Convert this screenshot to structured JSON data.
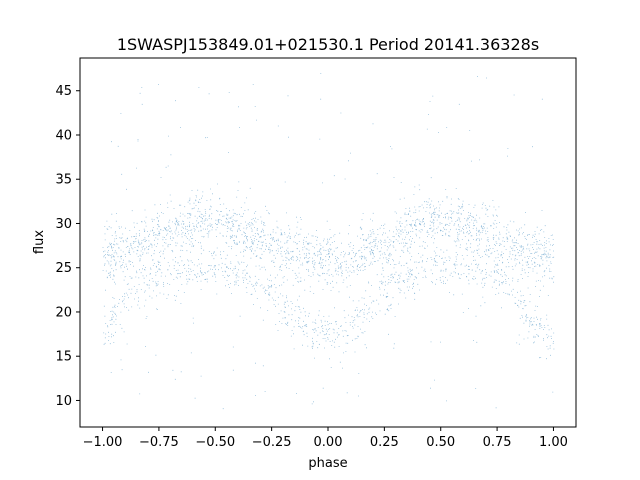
{
  "chart_data": {
    "type": "scatter",
    "title": "1SWASPJ153849.01+021530.1 Period 20141.36328s",
    "xlabel": "phase",
    "ylabel": "flux",
    "xlim": [
      -1.1,
      1.1
    ],
    "ylim": [
      7.0,
      48.7
    ],
    "xticks": [
      -1.0,
      -0.75,
      -0.5,
      -0.25,
      0.0,
      0.25,
      0.5,
      0.75,
      1.0
    ],
    "xtick_labels": [
      "−1.00",
      "−0.75",
      "−0.50",
      "−0.25",
      "0.00",
      "0.25",
      "0.50",
      "0.75",
      "1.00"
    ],
    "yticks": [
      10,
      15,
      20,
      25,
      30,
      35,
      40,
      45
    ],
    "ytick_labels": [
      "10",
      "15",
      "20",
      "25",
      "30",
      "35",
      "40",
      "45"
    ],
    "grid": false,
    "marker_color": "#1f77b4",
    "series": [
      {
        "description": "folded light curve (phase, flux); dense point cloud",
        "envelope": {
          "phase": [
            -1.0,
            -0.9,
            -0.75,
            -0.55,
            -0.35,
            -0.2,
            -0.1,
            0.0,
            0.1,
            0.25,
            0.45,
            0.65,
            0.8,
            0.9,
            1.0
          ],
          "upper_band_flux": [
            26.0,
            27.0,
            29.0,
            30.5,
            29.0,
            27.0,
            26.0,
            25.5,
            26.0,
            28.0,
            30.5,
            29.5,
            27.5,
            26.5,
            26.0
          ],
          "lower_band_flux": [
            17.0,
            22.0,
            24.0,
            25.0,
            24.0,
            21.0,
            18.0,
            17.3,
            18.0,
            23.0,
            25.0,
            25.0,
            23.0,
            19.0,
            17.0
          ]
        }
      }
    ]
  }
}
